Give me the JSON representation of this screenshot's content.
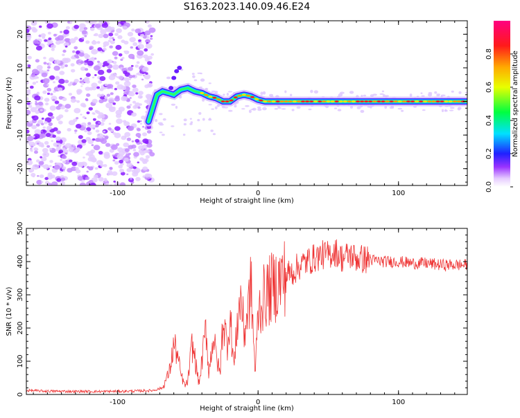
{
  "title": "S163.2023.140.09.46.E24",
  "chart_data": [
    {
      "type": "heatmap",
      "title": "S163.2023.140.09.46.E24",
      "xlabel": "Height of straight line (km)",
      "ylabel": "Frequency (Hz)",
      "xlim": [
        -165,
        149
      ],
      "ylim": [
        -25,
        24
      ],
      "x_ticks": [
        -100,
        0,
        100
      ],
      "y_ticks": [
        -20,
        -10,
        0,
        10,
        20
      ],
      "grid": false,
      "colorbar": {
        "label": "Normalized spectral amplitude",
        "range": [
          0,
          1
        ],
        "ticks": [
          "0.0",
          "0.2",
          "0.4",
          "0.6",
          "0.8"
        ],
        "colormap": "hsv-rainbow (white, purple, blue, cyan, green, yellow, orange, red, magenta)"
      },
      "ridge": {
        "description": "strong spectral line",
        "x": [
          -78,
          -75,
          -72,
          -68,
          -64,
          -60,
          -55,
          -50,
          -45,
          -40,
          -35,
          -30,
          -25,
          -20,
          -15,
          -10,
          -5,
          0,
          5,
          10,
          20,
          40,
          60,
          80,
          100,
          120,
          149
        ],
        "y": [
          -6,
          -2,
          2,
          3,
          2.5,
          2,
          3.5,
          4,
          3,
          2.5,
          1.5,
          1,
          0,
          0,
          1.5,
          2,
          1.5,
          0.5,
          0,
          0,
          0,
          0,
          0,
          0,
          0,
          0,
          0
        ]
      },
      "noise_region_x": [
        -165,
        -75
      ]
    },
    {
      "type": "line",
      "xlabel": "Height of straight line (km)",
      "ylabel": "SNR (10 * v/v)",
      "xlim": [
        -165,
        149
      ],
      "ylim": [
        0,
        500
      ],
      "x_ticks": [
        -100,
        0,
        100
      ],
      "y_ticks": [
        0,
        100,
        200,
        300,
        400,
        500
      ],
      "grid": false,
      "line_color": "#ee3333",
      "series": [
        {
          "x": [
            -165,
            -150,
            -130,
            -110,
            -90,
            -75,
            -68,
            -63,
            -60,
            -58,
            -55,
            -52,
            -50,
            -47,
            -45,
            -42,
            -40,
            -37,
            -35,
            -32,
            -30,
            -27,
            -25,
            -22,
            -20,
            -17,
            -15,
            -12,
            -10,
            -7,
            -5,
            -2,
            0,
            5,
            10,
            15,
            20,
            25,
            30,
            35,
            40,
            45,
            50,
            55,
            60,
            65,
            70,
            80,
            90,
            100,
            110,
            120,
            130,
            140,
            149
          ],
          "values": [
            12,
            10,
            9,
            9,
            10,
            12,
            20,
            70,
            150,
            130,
            60,
            25,
            40,
            150,
            110,
            30,
            100,
            200,
            60,
            180,
            120,
            60,
            230,
            150,
            240,
            80,
            210,
            300,
            180,
            260,
            330,
            60,
            250,
            300,
            320,
            340,
            360,
            370,
            390,
            400,
            410,
            420,
            420,
            430,
            410,
            420,
            410,
            405,
            400,
            400,
            395,
            395,
            390,
            390,
            390
          ]
        }
      ]
    }
  ]
}
